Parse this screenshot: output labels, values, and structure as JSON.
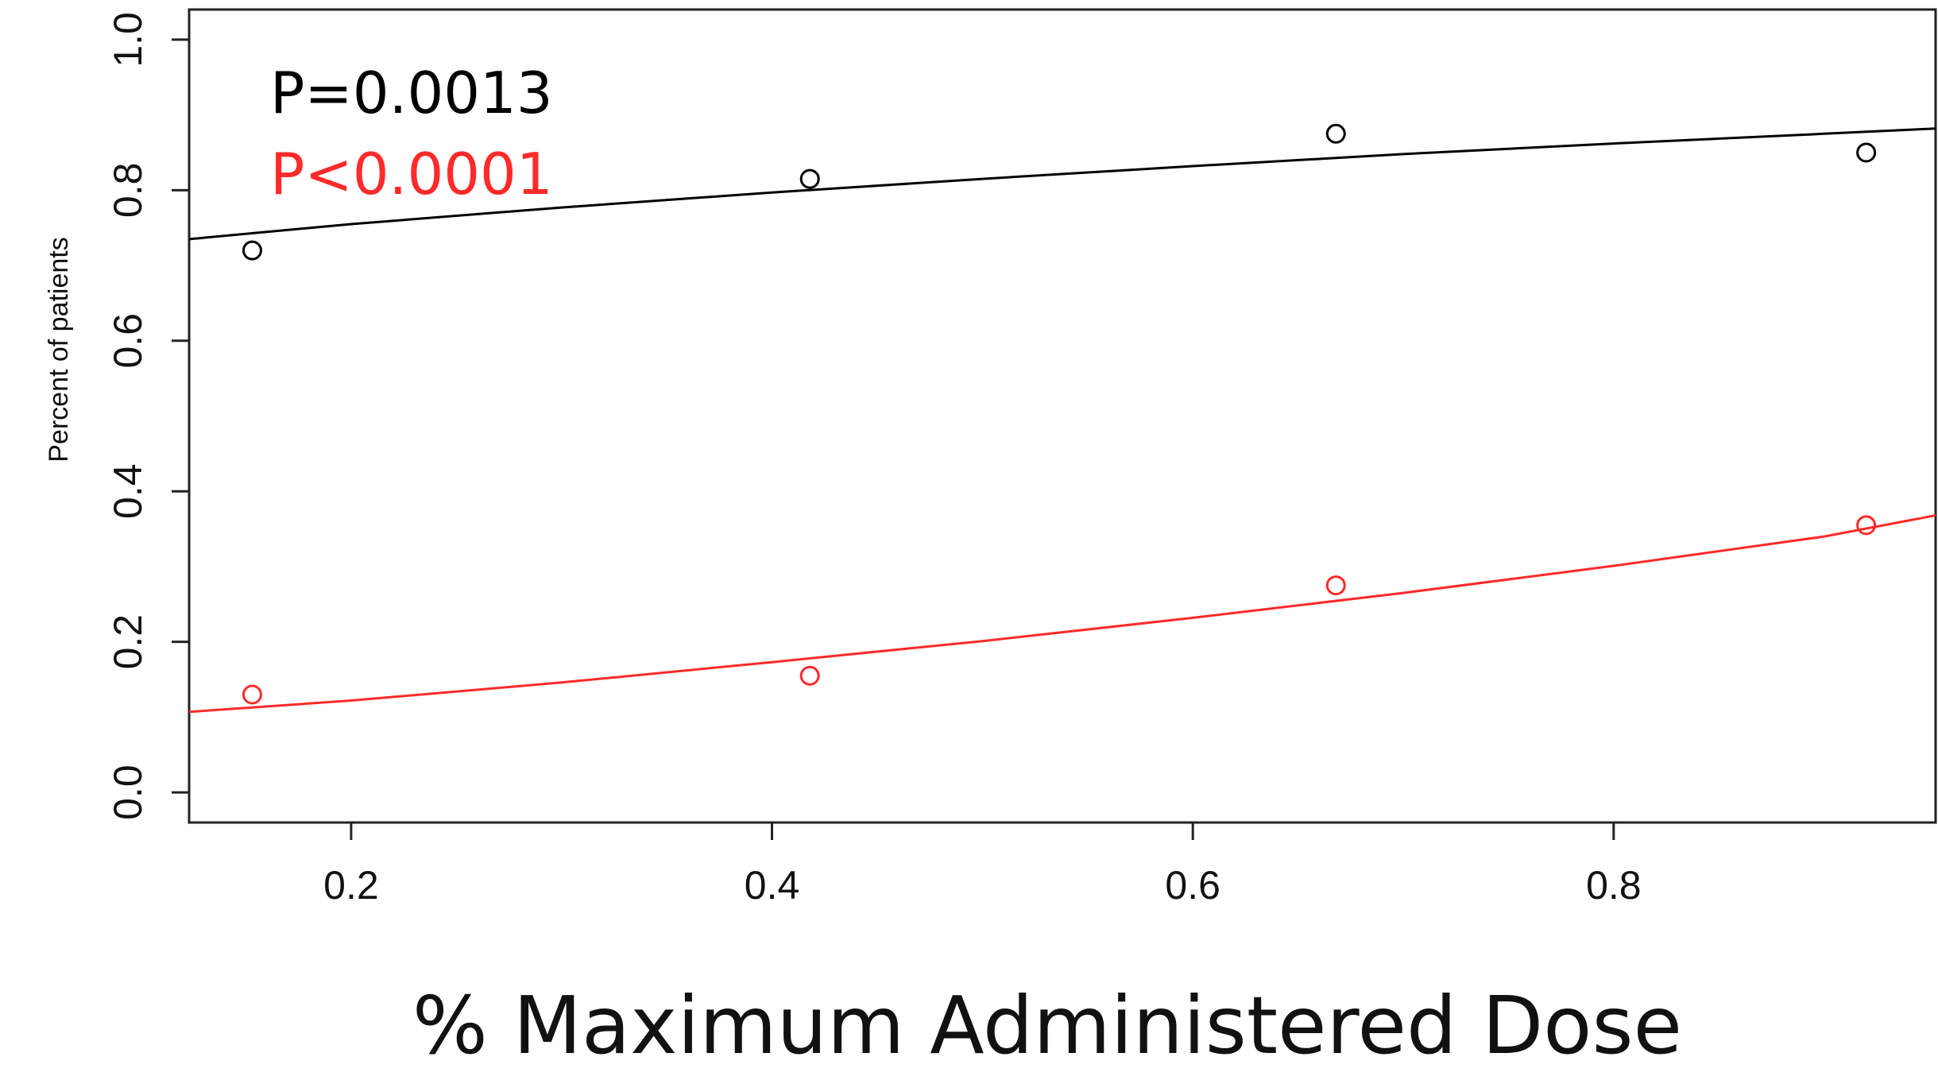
{
  "chart_data": {
    "type": "scatter",
    "title": "",
    "xlabel": "% Maximum Administered Dose",
    "ylabel": "Percent of patients",
    "xlim": [
      0.123,
      0.953
    ],
    "ylim": [
      -0.04,
      1.04
    ],
    "x_ticks": [
      0.2,
      0.4,
      0.6,
      0.8
    ],
    "x_tick_labels": [
      "0.2",
      "0.4",
      "0.6",
      "0.8"
    ],
    "y_ticks": [
      0.0,
      0.2,
      0.4,
      0.6,
      0.8,
      1.0
    ],
    "y_tick_labels": [
      "0.0",
      "0.2",
      "0.4",
      "0.6",
      "0.8",
      "1.0"
    ],
    "grid": false,
    "legend": "none",
    "series": [
      {
        "color": "#000000",
        "points": [
          {
            "x": 0.153,
            "y": 0.72
          },
          {
            "x": 0.418,
            "y": 0.815
          },
          {
            "x": 0.668,
            "y": 0.875
          },
          {
            "x": 0.92,
            "y": 0.85
          }
        ],
        "fit_curve": [
          {
            "x": 0.123,
            "y": 0.735
          },
          {
            "x": 0.2,
            "y": 0.755
          },
          {
            "x": 0.3,
            "y": 0.777
          },
          {
            "x": 0.4,
            "y": 0.797
          },
          {
            "x": 0.5,
            "y": 0.815
          },
          {
            "x": 0.6,
            "y": 0.832
          },
          {
            "x": 0.7,
            "y": 0.848
          },
          {
            "x": 0.8,
            "y": 0.862
          },
          {
            "x": 0.9,
            "y": 0.875
          },
          {
            "x": 0.953,
            "y": 0.882
          }
        ]
      },
      {
        "color": "#ff2a2a",
        "points": [
          {
            "x": 0.153,
            "y": 0.13
          },
          {
            "x": 0.418,
            "y": 0.155
          },
          {
            "x": 0.668,
            "y": 0.275
          },
          {
            "x": 0.92,
            "y": 0.355
          }
        ],
        "fit_curve": [
          {
            "x": 0.123,
            "y": 0.107
          },
          {
            "x": 0.2,
            "y": 0.122
          },
          {
            "x": 0.3,
            "y": 0.146
          },
          {
            "x": 0.4,
            "y": 0.173
          },
          {
            "x": 0.5,
            "y": 0.201
          },
          {
            "x": 0.6,
            "y": 0.232
          },
          {
            "x": 0.7,
            "y": 0.265
          },
          {
            "x": 0.8,
            "y": 0.301
          },
          {
            "x": 0.9,
            "y": 0.34
          },
          {
            "x": 0.953,
            "y": 0.368
          }
        ]
      }
    ],
    "annotations": [
      {
        "text": "P=0.0013",
        "color": "#000000"
      },
      {
        "text": "P<0.0001",
        "color": "#ff2a2a"
      }
    ]
  }
}
